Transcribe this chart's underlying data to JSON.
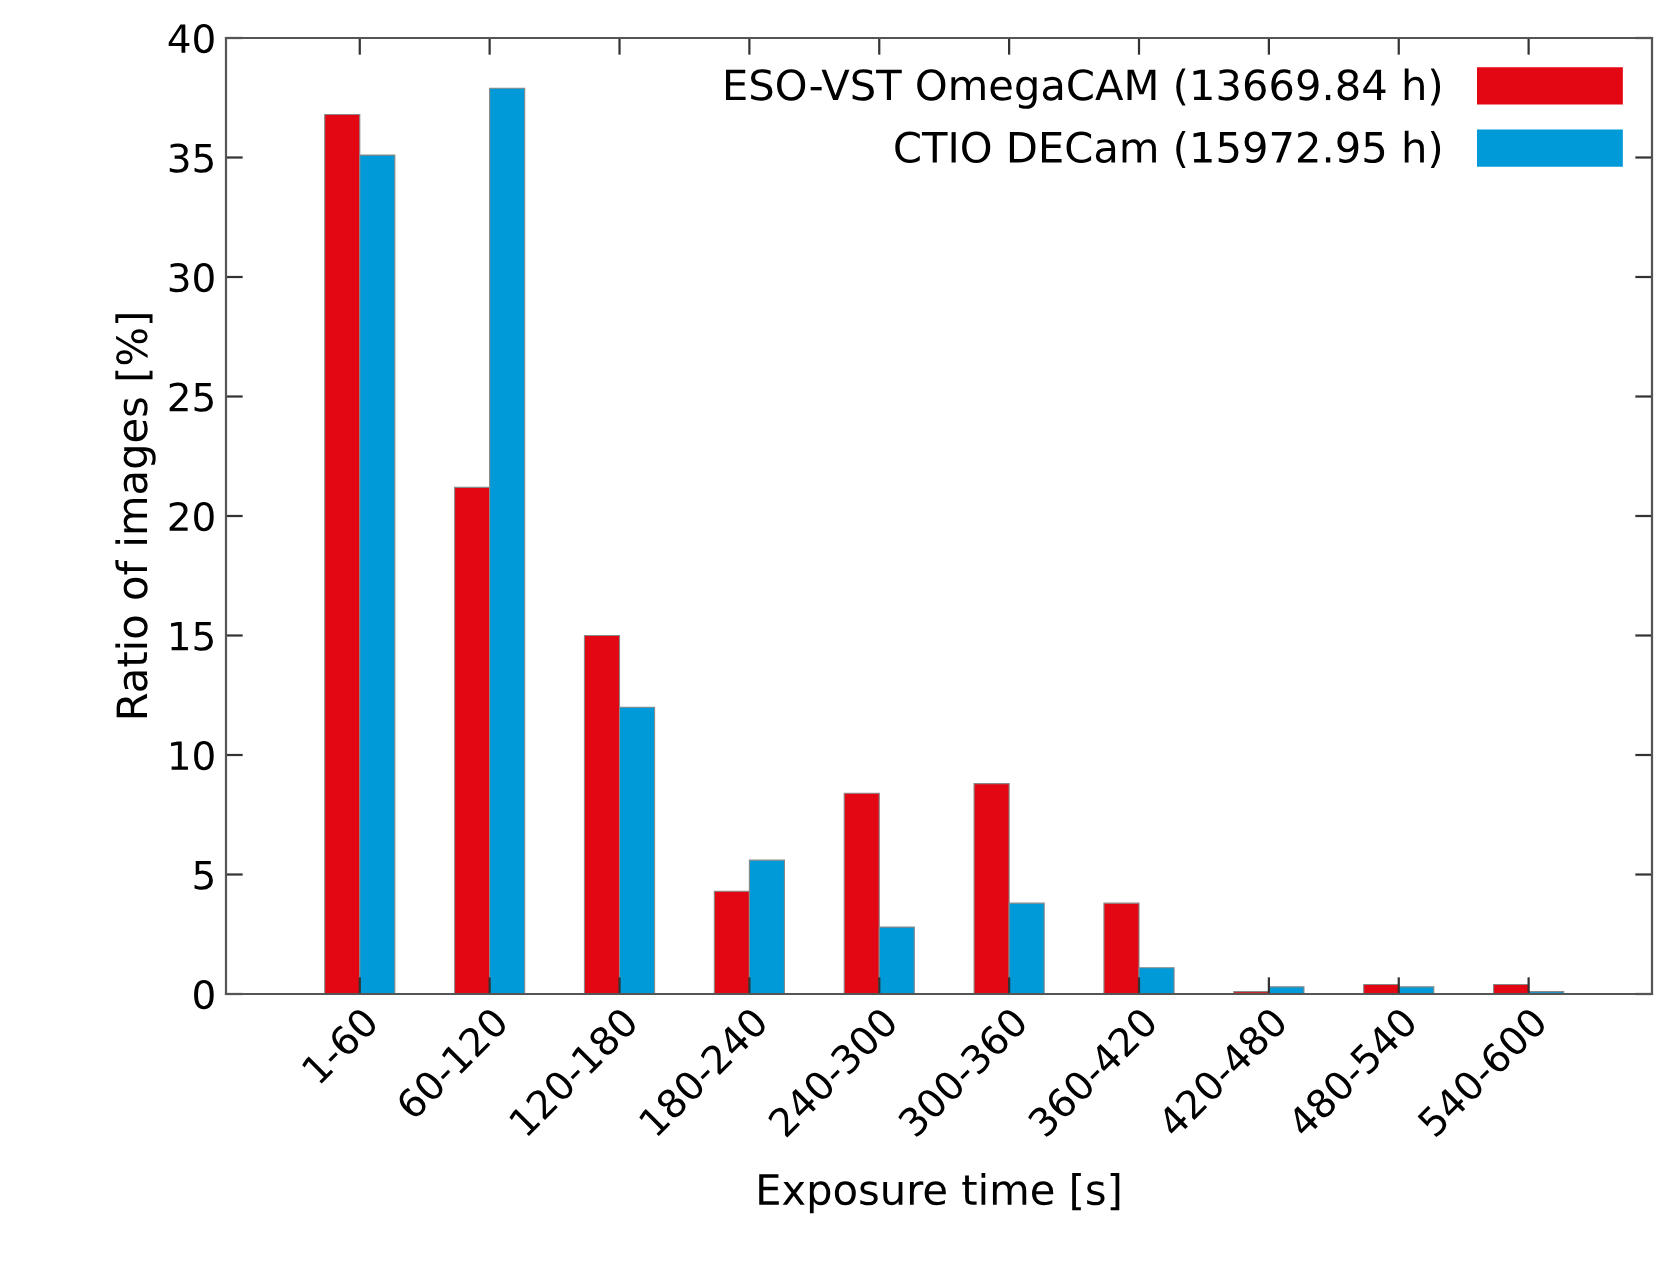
{
  "chart_data": {
    "type": "bar",
    "xlabel": "Exposure time [s]",
    "ylabel": "Ratio of images [%]",
    "categories": [
      "1-60",
      "60-120",
      "120-180",
      "180-240",
      "240-300",
      "300-360",
      "360-420",
      "420-480",
      "480-540",
      "540-600"
    ],
    "series": [
      {
        "name": "ESO-VST OmegaCAM (13669.84 h)",
        "color": "#e30613",
        "values": [
          36.8,
          21.2,
          15.0,
          4.3,
          8.4,
          8.8,
          3.8,
          0.1,
          0.4,
          0.4
        ]
      },
      {
        "name": "CTIO DECam (15972.95 h)",
        "color": "#009ad9",
        "values": [
          35.1,
          37.9,
          12.0,
          5.6,
          2.8,
          3.8,
          1.1,
          0.3,
          0.3,
          0.1
        ]
      }
    ],
    "ylim": [
      0,
      40
    ],
    "yticks": [
      0,
      5,
      10,
      15,
      20,
      25,
      30,
      35,
      40
    ],
    "grid": false,
    "legend": "top right"
  }
}
